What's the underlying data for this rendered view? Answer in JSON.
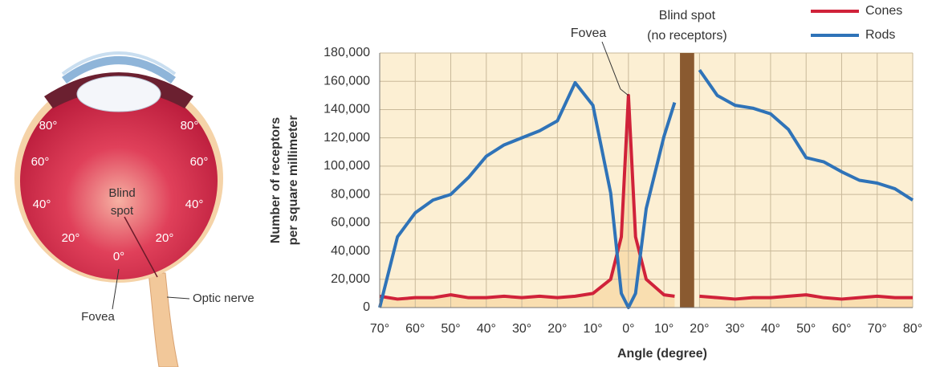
{
  "eye_diagram": {
    "angle_labels": [
      "80°",
      "80°",
      "60°",
      "60°",
      "40°",
      "40°",
      "20°",
      "20°",
      "0°"
    ],
    "blind_spot": [
      "Blind",
      "spot"
    ],
    "optic_nerve": "Optic nerve",
    "fovea": "Fovea"
  },
  "chart_data": {
    "type": "line",
    "xlabel": "Angle (degree)",
    "ylabel": [
      "Number of receptors",
      "per square millimeter"
    ],
    "annotations": {
      "fovea": "Fovea",
      "blind_spot": [
        "Blind spot",
        "(no receptors)"
      ]
    },
    "blind_spot_band": [
      14.5,
      18.5
    ],
    "x": [
      -70,
      -65,
      -60,
      -55,
      -50,
      -45,
      -40,
      -35,
      -30,
      -25,
      -20,
      -15,
      -10,
      -5,
      -2,
      0,
      2,
      5,
      10,
      13,
      16,
      20,
      25,
      30,
      35,
      40,
      45,
      50,
      55,
      60,
      65,
      70,
      75,
      80
    ],
    "series": [
      {
        "name": "Cones",
        "color": "#d0223a",
        "values": [
          8000,
          6000,
          7000,
          7000,
          9000,
          7000,
          7000,
          8000,
          7000,
          8000,
          7000,
          8000,
          10000,
          20000,
          50000,
          150000,
          50000,
          20000,
          9000,
          8000,
          null,
          8000,
          7000,
          6000,
          7000,
          7000,
          8000,
          9000,
          7000,
          6000,
          7000,
          8000,
          7000,
          7000
        ]
      },
      {
        "name": "Rods",
        "color": "#2f73b8",
        "values": [
          0,
          50000,
          67000,
          76000,
          80000,
          92000,
          107000,
          115000,
          120000,
          125000,
          132000,
          159000,
          143000,
          81000,
          10000,
          0,
          10000,
          70000,
          121000,
          145000,
          null,
          168000,
          150000,
          143000,
          141000,
          137000,
          126000,
          106000,
          103000,
          96000,
          90000,
          88000,
          84000,
          76000
        ]
      }
    ],
    "xlim": [
      -70,
      80
    ],
    "xticks": [
      {
        "value": -70,
        "label": "70°"
      },
      {
        "value": -60,
        "label": "60°"
      },
      {
        "value": -50,
        "label": "50°"
      },
      {
        "value": -40,
        "label": "40°"
      },
      {
        "value": -30,
        "label": "30°"
      },
      {
        "value": -20,
        "label": "20°"
      },
      {
        "value": -10,
        "label": "10°"
      },
      {
        "value": 0,
        "label": "0°"
      },
      {
        "value": 10,
        "label": "10°"
      },
      {
        "value": 20,
        "label": "20°"
      },
      {
        "value": 30,
        "label": "30°"
      },
      {
        "value": 40,
        "label": "40°"
      },
      {
        "value": 50,
        "label": "50°"
      },
      {
        "value": 60,
        "label": "60°"
      },
      {
        "value": 70,
        "label": "70°"
      },
      {
        "value": 80,
        "label": "80°"
      }
    ],
    "ylim": [
      0,
      180000
    ],
    "yticks": [
      0,
      {
        "value": 20000,
        "label": "20,000"
      },
      {
        "value": 40000,
        "label": "40,000"
      },
      {
        "value": 60000,
        "label": "60,000"
      },
      {
        "value": 80000,
        "label": "80,000"
      },
      {
        "value": 100000,
        "label": "100,000"
      },
      {
        "value": 120000,
        "label": "120,000"
      },
      {
        "value": 140000,
        "label": "140,000"
      },
      {
        "value": 160000,
        "label": "160,000"
      },
      {
        "value": 180000,
        "label": "180,000"
      }
    ],
    "grid": true,
    "legend": "top-right",
    "band_color": "#8a5a30",
    "plot_background": "#fcefd3",
    "area_color": "#f8d9a8"
  }
}
